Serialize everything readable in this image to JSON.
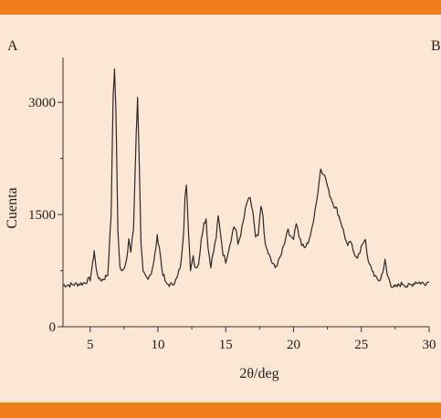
{
  "panel_labels": {
    "left": "A",
    "right": "B"
  },
  "colors": {
    "background": "#fce6d4",
    "accent_bar": "#ee7d1a",
    "trace": "#2a2a2a"
  },
  "chart_data": {
    "type": "line",
    "title": "",
    "xlabel": "2θ/deg",
    "ylabel": "Cuenta",
    "xlim": [
      3,
      30
    ],
    "ylim": [
      0,
      3600
    ],
    "xticks": [
      5,
      10,
      15,
      20,
      25,
      30
    ],
    "yticks": [
      0,
      1500,
      3000
    ],
    "grid": false,
    "series": [
      {
        "points": [
          [
            3.0,
            560
          ],
          [
            3.5,
            560
          ],
          [
            4.0,
            570
          ],
          [
            4.5,
            580
          ],
          [
            5.0,
            640
          ],
          [
            5.2,
            850
          ],
          [
            5.3,
            1020
          ],
          [
            5.45,
            760
          ],
          [
            5.7,
            620
          ],
          [
            6.0,
            640
          ],
          [
            6.3,
            700
          ],
          [
            6.55,
            1500
          ],
          [
            6.7,
            3100
          ],
          [
            6.8,
            3440
          ],
          [
            6.9,
            2900
          ],
          [
            7.05,
            1300
          ],
          [
            7.2,
            800
          ],
          [
            7.5,
            760
          ],
          [
            7.7,
            880
          ],
          [
            7.85,
            1180
          ],
          [
            8.0,
            1000
          ],
          [
            8.2,
            1300
          ],
          [
            8.4,
            2600
          ],
          [
            8.5,
            3050
          ],
          [
            8.6,
            2400
          ],
          [
            8.75,
            1100
          ],
          [
            8.9,
            720
          ],
          [
            9.2,
            650
          ],
          [
            9.5,
            720
          ],
          [
            9.7,
            860
          ],
          [
            9.95,
            1200
          ],
          [
            10.1,
            1080
          ],
          [
            10.3,
            760
          ],
          [
            10.6,
            570
          ],
          [
            11.0,
            560
          ],
          [
            11.4,
            640
          ],
          [
            11.7,
            840
          ],
          [
            11.9,
            1300
          ],
          [
            12.0,
            1780
          ],
          [
            12.1,
            1870
          ],
          [
            12.25,
            1300
          ],
          [
            12.4,
            780
          ],
          [
            12.6,
            950
          ],
          [
            12.75,
            800
          ],
          [
            13.0,
            820
          ],
          [
            13.2,
            1200
          ],
          [
            13.4,
            1380
          ],
          [
            13.55,
            1450
          ],
          [
            13.7,
            1050
          ],
          [
            13.9,
            820
          ],
          [
            14.1,
            1000
          ],
          [
            14.3,
            1200
          ],
          [
            14.45,
            1470
          ],
          [
            14.6,
            1280
          ],
          [
            14.8,
            980
          ],
          [
            15.0,
            880
          ],
          [
            15.2,
            1020
          ],
          [
            15.4,
            1180
          ],
          [
            15.6,
            1340
          ],
          [
            15.75,
            1300
          ],
          [
            15.9,
            1100
          ],
          [
            16.1,
            1240
          ],
          [
            16.3,
            1400
          ],
          [
            16.45,
            1560
          ],
          [
            16.6,
            1680
          ],
          [
            16.8,
            1700
          ],
          [
            17.0,
            1540
          ],
          [
            17.2,
            1180
          ],
          [
            17.4,
            1220
          ],
          [
            17.6,
            1600
          ],
          [
            17.75,
            1480
          ],
          [
            17.9,
            1100
          ],
          [
            18.2,
            950
          ],
          [
            18.5,
            820
          ],
          [
            18.8,
            820
          ],
          [
            19.0,
            920
          ],
          [
            19.2,
            1050
          ],
          [
            19.4,
            1180
          ],
          [
            19.6,
            1320
          ],
          [
            19.8,
            1180
          ],
          [
            20.0,
            1200
          ],
          [
            20.2,
            1400
          ],
          [
            20.4,
            1220
          ],
          [
            20.6,
            1100
          ],
          [
            20.8,
            1050
          ],
          [
            21.0,
            1100
          ],
          [
            21.3,
            1250
          ],
          [
            21.6,
            1580
          ],
          [
            21.8,
            1800
          ],
          [
            22.0,
            2120
          ],
          [
            22.2,
            2060
          ],
          [
            22.4,
            1960
          ],
          [
            22.6,
            1800
          ],
          [
            22.9,
            1660
          ],
          [
            23.2,
            1560
          ],
          [
            23.5,
            1400
          ],
          [
            23.8,
            1200
          ],
          [
            24.0,
            1060
          ],
          [
            24.2,
            1150
          ],
          [
            24.4,
            1000
          ],
          [
            24.7,
            940
          ],
          [
            24.9,
            980
          ],
          [
            25.1,
            1120
          ],
          [
            25.3,
            1180
          ],
          [
            25.5,
            860
          ],
          [
            25.8,
            760
          ],
          [
            26.1,
            640
          ],
          [
            26.4,
            620
          ],
          [
            26.6,
            760
          ],
          [
            26.75,
            880
          ],
          [
            26.9,
            700
          ],
          [
            27.2,
            560
          ],
          [
            27.5,
            520
          ],
          [
            27.8,
            560
          ],
          [
            28.1,
            580
          ],
          [
            28.4,
            540
          ],
          [
            28.7,
            560
          ],
          [
            29.0,
            600
          ],
          [
            29.3,
            590
          ],
          [
            29.6,
            580
          ],
          [
            30.0,
            600
          ]
        ]
      }
    ]
  }
}
